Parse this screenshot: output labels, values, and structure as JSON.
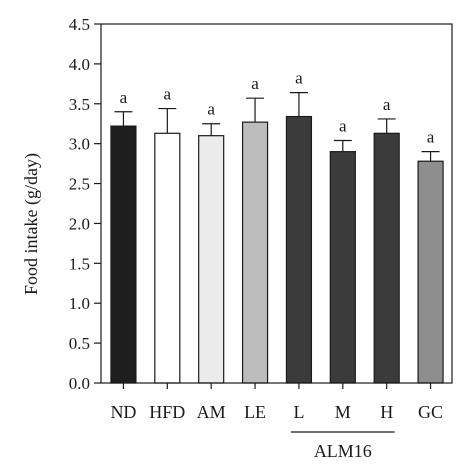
{
  "chart_data": {
    "type": "bar",
    "ylabel": "Food intake (g/day)",
    "ylim": [
      0,
      4.5
    ],
    "yticks": [
      "0.0",
      "0.5",
      "1.0",
      "1.5",
      "2.0",
      "2.5",
      "3.0",
      "3.5",
      "4.0",
      "4.5"
    ],
    "categories": [
      "ND",
      "HFD",
      "AM",
      "LE",
      "L",
      "M",
      "H",
      "GC"
    ],
    "values": [
      3.22,
      3.13,
      3.1,
      3.27,
      3.34,
      2.9,
      3.13,
      2.78
    ],
    "errors": [
      0.18,
      0.31,
      0.15,
      0.3,
      0.3,
      0.14,
      0.18,
      0.12
    ],
    "significance": [
      "a",
      "a",
      "a",
      "a",
      "a",
      "a",
      "a",
      "a"
    ],
    "bar_colors": [
      "#1e1e1e",
      "#ffffff",
      "#ececec",
      "#bdbdbd",
      "#3b3b3b",
      "#3b3b3b",
      "#3b3b3b",
      "#8e8e8e"
    ],
    "group_label": "ALM16",
    "group_members": [
      "L",
      "M",
      "H"
    ],
    "grid": false
  }
}
